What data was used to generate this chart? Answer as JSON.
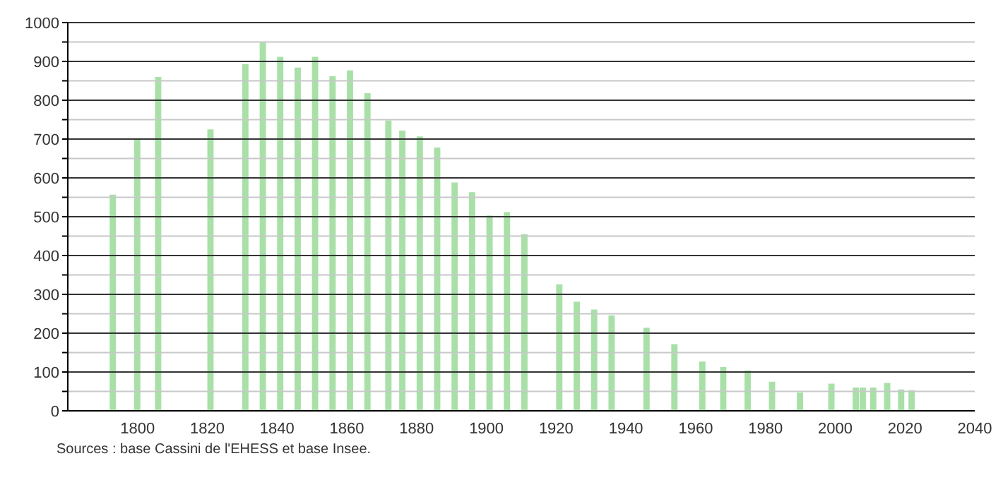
{
  "chart_data": {
    "type": "bar",
    "x": [
      1793,
      1800,
      1806,
      1821,
      1831,
      1836,
      1841,
      1846,
      1851,
      1856,
      1861,
      1866,
      1872,
      1876,
      1881,
      1886,
      1891,
      1896,
      1901,
      1906,
      1911,
      1921,
      1926,
      1931,
      1936,
      1946,
      1954,
      1962,
      1968,
      1975,
      1982,
      1990,
      1999,
      2006,
      2008,
      2011,
      2015,
      2019,
      2022
    ],
    "values": [
      557,
      700,
      860,
      725,
      893,
      950,
      912,
      884,
      912,
      862,
      877,
      818,
      748,
      722,
      707,
      678,
      588,
      563,
      503,
      512,
      455,
      326,
      281,
      261,
      246,
      214,
      172,
      127,
      113,
      104,
      75,
      47,
      70,
      60,
      60,
      60,
      72,
      55,
      53
    ],
    "color": "#a8e0a8",
    "xlim": [
      1780,
      2040
    ],
    "xticks": [
      1800,
      1820,
      1840,
      1860,
      1880,
      1900,
      1920,
      1940,
      1960,
      1980,
      2000,
      2020,
      2040
    ],
    "ylim": [
      0,
      1000
    ],
    "yticks": [
      0,
      {
        "value": 50,
        "label": null
      },
      100,
      {
        "value": 150,
        "label": null
      },
      200,
      {
        "value": 250,
        "label": null
      },
      300,
      {
        "value": 350,
        "label": null
      },
      400,
      {
        "value": 450,
        "label": null
      },
      500,
      {
        "value": 550,
        "label": null
      },
      600,
      {
        "value": 650,
        "label": null
      },
      700,
      {
        "value": 750,
        "label": null
      },
      800,
      {
        "value": 850,
        "label": null
      },
      900,
      {
        "value": 950,
        "label": null
      },
      1000
    ],
    "grid": "y",
    "annotations": [
      "Sources : base Cassini de l'EHESS et base Insee."
    ]
  }
}
